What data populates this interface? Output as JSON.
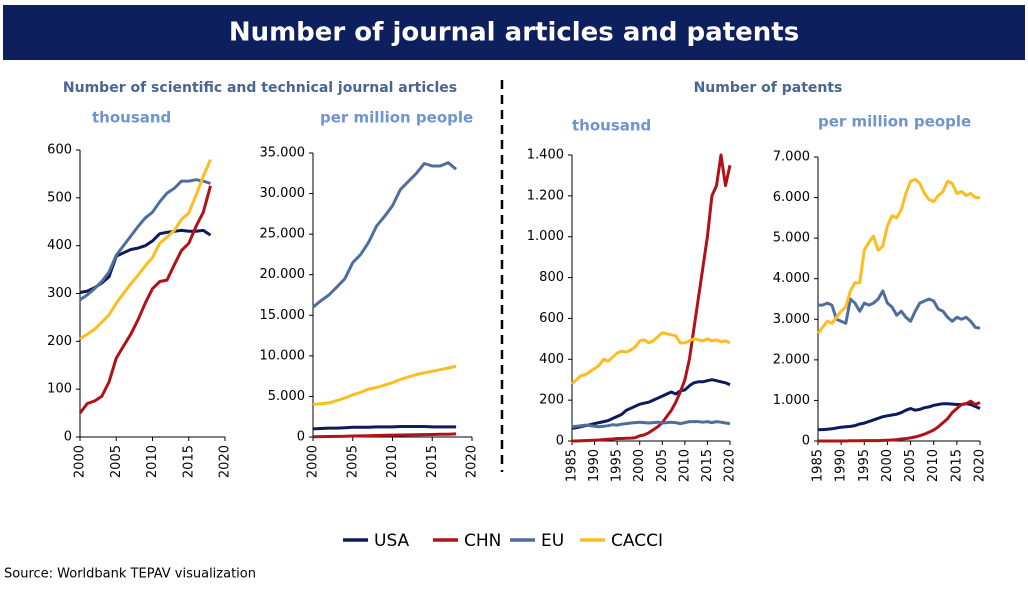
{
  "header": {
    "title": "Number of journal articles and patents"
  },
  "sections": [
    "Number of scientific and technical journal articles",
    "Number of patents"
  ],
  "source": "Source: Worldbank TEPAV visualization",
  "chart_data": [
    {
      "type": "line",
      "subtitle": "thousand",
      "x": [
        2000,
        2001,
        2002,
        2003,
        2004,
        2005,
        2006,
        2007,
        2008,
        2009,
        2010,
        2011,
        2012,
        2013,
        2014,
        2015,
        2016,
        2017,
        2018
      ],
      "xlim": [
        2000,
        2020
      ],
      "xticks": [
        2000,
        2005,
        2010,
        2015,
        2020
      ],
      "ylim": [
        0,
        600
      ],
      "yticks": [
        0,
        100,
        200,
        300,
        400,
        500,
        600
      ],
      "series": [
        {
          "name": "USA",
          "color": "#0d1b5c",
          "values": [
            302,
            305,
            312,
            322,
            335,
            378,
            385,
            392,
            395,
            400,
            410,
            425,
            428,
            430,
            432,
            430,
            430,
            432,
            422
          ]
        },
        {
          "name": "CHN",
          "color": "#b01217",
          "values": [
            50,
            70,
            75,
            85,
            115,
            165,
            190,
            215,
            245,
            280,
            310,
            325,
            328,
            360,
            390,
            405,
            440,
            470,
            525
          ]
        },
        {
          "name": "EU",
          "color": "#4f6e9e",
          "values": [
            287,
            297,
            310,
            325,
            345,
            380,
            400,
            420,
            440,
            458,
            470,
            492,
            510,
            520,
            535,
            535,
            538,
            535,
            530
          ]
        },
        {
          "name": "CACCI",
          "color": "#fbbd1f",
          "values": [
            205,
            215,
            225,
            240,
            255,
            280,
            300,
            320,
            338,
            358,
            375,
            405,
            418,
            432,
            455,
            468,
            505,
            545,
            580
          ]
        }
      ]
    },
    {
      "type": "line",
      "subtitle": "per million people",
      "x": [
        2000,
        2001,
        2002,
        2003,
        2004,
        2005,
        2006,
        2007,
        2008,
        2009,
        2010,
        2011,
        2012,
        2013,
        2014,
        2015,
        2016,
        2017,
        2018
      ],
      "xlim": [
        2000,
        2020
      ],
      "xticks": [
        2000,
        2005,
        2010,
        2015,
        2020
      ],
      "ylim": [
        0,
        35000
      ],
      "yticks": [
        0,
        {
          "value": 5000,
          "label": "5.000"
        },
        {
          "value": 10000,
          "label": "10.000"
        },
        {
          "value": 15000,
          "label": "15.000"
        },
        {
          "value": 20000,
          "label": "20.000"
        },
        {
          "value": 25000,
          "label": "25.000"
        },
        {
          "value": 30000,
          "label": "30.000"
        },
        {
          "value": 35000,
          "label": "35.000"
        }
      ],
      "series": [
        {
          "color": "#0d1b5c",
          "values": [
            1000,
            1050,
            1100,
            1100,
            1150,
            1200,
            1200,
            1200,
            1250,
            1250,
            1250,
            1300,
            1300,
            1300,
            1300,
            1250,
            1250,
            1250,
            1250
          ]
        },
        {
          "color": "#b01217",
          "values": [
            40,
            50,
            60,
            70,
            90,
            120,
            140,
            160,
            190,
            210,
            230,
            250,
            260,
            270,
            290,
            310,
            330,
            350,
            380
          ]
        },
        {
          "color": "#4f6e9e",
          "values": [
            16000,
            16800,
            17500,
            18500,
            19500,
            21500,
            22500,
            24000,
            26000,
            27200,
            28500,
            30500,
            31500,
            32500,
            33700,
            33400,
            33400,
            33800,
            33000
          ]
        },
        {
          "color": "#fbbd1f",
          "values": [
            4000,
            4100,
            4200,
            4500,
            4800,
            5200,
            5500,
            5900,
            6100,
            6400,
            6700,
            7100,
            7400,
            7700,
            7900,
            8100,
            8300,
            8500,
            8700
          ]
        }
      ]
    },
    {
      "type": "line",
      "subtitle": "thousand",
      "x": [
        1985,
        1986,
        1987,
        1988,
        1989,
        1990,
        1991,
        1992,
        1993,
        1994,
        1995,
        1996,
        1997,
        1998,
        1999,
        2000,
        2001,
        2002,
        2003,
        2004,
        2005,
        2006,
        2007,
        2008,
        2009,
        2010,
        2011,
        2012,
        2013,
        2014,
        2015,
        2016,
        2017,
        2018,
        2019,
        2020
      ],
      "xlim": [
        1985,
        2020
      ],
      "xticks": [
        1985,
        1990,
        1995,
        2000,
        2005,
        2010,
        2015,
        2020
      ],
      "ylim": [
        0,
        1400
      ],
      "yticks": [
        0,
        200,
        400,
        600,
        800,
        {
          "value": 1000,
          "label": "1.000"
        },
        {
          "value": 1200,
          "label": "1.200"
        },
        {
          "value": 1400,
          "label": "1.400"
        }
      ],
      "series": [
        {
          "color": "#0d1b5c",
          "values": [
            62,
            65,
            70,
            75,
            80,
            85,
            90,
            95,
            100,
            110,
            120,
            130,
            150,
            160,
            170,
            180,
            185,
            190,
            200,
            210,
            220,
            230,
            240,
            230,
            245,
            250,
            270,
            285,
            290,
            290,
            295,
            300,
            295,
            290,
            285,
            275
          ]
        },
        {
          "color": "#b01217",
          "values": [
            0,
            0,
            1,
            2,
            3,
            4,
            5,
            7,
            9,
            10,
            12,
            12,
            13,
            14,
            16,
            25,
            30,
            40,
            55,
            70,
            90,
            120,
            150,
            190,
            240,
            300,
            400,
            550,
            700,
            850,
            1000,
            1200,
            1250,
            1400,
            1250,
            1350
          ]
        },
        {
          "color": "#4f6e9e",
          "values": [
            70,
            72,
            75,
            78,
            75,
            72,
            70,
            72,
            75,
            80,
            78,
            82,
            85,
            88,
            90,
            92,
            90,
            88,
            90,
            92,
            88,
            90,
            92,
            90,
            85,
            90,
            95,
            95,
            95,
            92,
            95,
            90,
            95,
            92,
            88,
            85
          ]
        },
        {
          "color": "#fbbd1f",
          "values": [
            280,
            300,
            320,
            325,
            340,
            355,
            370,
            400,
            390,
            410,
            430,
            440,
            435,
            445,
            460,
            490,
            495,
            480,
            490,
            510,
            530,
            525,
            520,
            515,
            480,
            480,
            490,
            500,
            495,
            490,
            500,
            490,
            495,
            485,
            490,
            480
          ]
        }
      ]
    },
    {
      "type": "line",
      "subtitle": "per million people",
      "x": [
        1985,
        1986,
        1987,
        1988,
        1989,
        1990,
        1991,
        1992,
        1993,
        1994,
        1995,
        1996,
        1997,
        1998,
        1999,
        2000,
        2001,
        2002,
        2003,
        2004,
        2005,
        2006,
        2007,
        2008,
        2009,
        2010,
        2011,
        2012,
        2013,
        2014,
        2015,
        2016,
        2017,
        2018,
        2019,
        2020
      ],
      "xlim": [
        1985,
        2020
      ],
      "xticks": [
        1985,
        1990,
        1995,
        2000,
        2005,
        2010,
        2015,
        2020
      ],
      "ylim": [
        0,
        7000
      ],
      "yticks": [
        0,
        {
          "value": 1000,
          "label": "1.000"
        },
        {
          "value": 2000,
          "label": "2.000"
        },
        {
          "value": 3000,
          "label": "3.000"
        },
        {
          "value": 4000,
          "label": "4.000"
        },
        {
          "value": 5000,
          "label": "5.000"
        },
        {
          "value": 6000,
          "label": "6.000"
        },
        {
          "value": 7000,
          "label": "7.000"
        }
      ],
      "series": [
        {
          "color": "#0d1b5c",
          "values": [
            280,
            280,
            290,
            300,
            320,
            340,
            350,
            360,
            380,
            420,
            440,
            480,
            520,
            560,
            600,
            620,
            640,
            660,
            700,
            760,
            800,
            760,
            780,
            820,
            840,
            880,
            900,
            920,
            920,
            910,
            900,
            900,
            920,
            900,
            850,
            800
          ]
        },
        {
          "color": "#b01217",
          "values": [
            0,
            0,
            0,
            0,
            0,
            0,
            0,
            5,
            5,
            5,
            10,
            10,
            10,
            10,
            15,
            20,
            25,
            35,
            50,
            60,
            80,
            100,
            130,
            170,
            220,
            270,
            350,
            450,
            550,
            700,
            800,
            900,
            920,
            980,
            900,
            950
          ]
        },
        {
          "color": "#4f6e9e",
          "values": [
            3350,
            3350,
            3400,
            3350,
            3000,
            2950,
            2900,
            3500,
            3400,
            3200,
            3400,
            3350,
            3400,
            3500,
            3700,
            3400,
            3300,
            3100,
            3200,
            3050,
            2950,
            3200,
            3400,
            3450,
            3500,
            3450,
            3250,
            3200,
            3050,
            2950,
            3050,
            3000,
            3050,
            2950,
            2800,
            2780
          ]
        },
        {
          "color": "#fbbd1f",
          "values": [
            2650,
            2800,
            2950,
            2900,
            3050,
            3200,
            3300,
            3700,
            3900,
            3900,
            4700,
            4900,
            5050,
            4700,
            4800,
            5300,
            5550,
            5500,
            5700,
            6100,
            6400,
            6450,
            6350,
            6100,
            5950,
            5900,
            6050,
            6150,
            6400,
            6350,
            6100,
            6150,
            6050,
            6100,
            6000,
            6000
          ]
        }
      ]
    }
  ]
}
